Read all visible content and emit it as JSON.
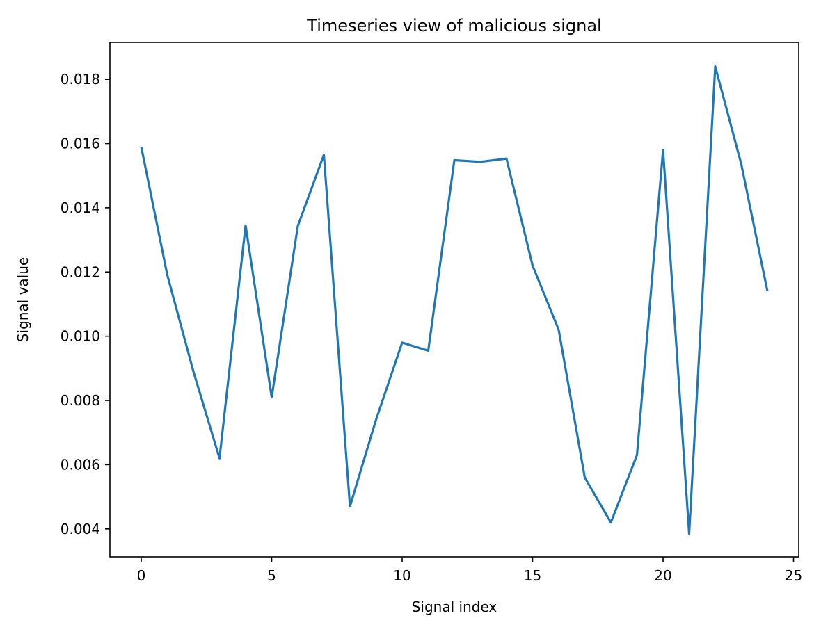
{
  "chart_data": {
    "type": "line",
    "title": "Timeseries view of malicious signal",
    "xlabel": "Signal index",
    "ylabel": "Signal value",
    "xlim": [
      -1.2,
      25.2
    ],
    "ylim": [
      0.00313,
      0.01915
    ],
    "xticks": [
      0,
      5,
      10,
      15,
      20,
      25
    ],
    "xtick_labels": [
      "0",
      "5",
      "10",
      "15",
      "20",
      "25"
    ],
    "yticks": [
      0.004,
      0.006,
      0.008,
      0.01,
      0.012,
      0.014,
      0.016,
      0.018
    ],
    "ytick_labels": [
      "0.004",
      "0.006",
      "0.008",
      "0.010",
      "0.012",
      "0.014",
      "0.016",
      "0.018"
    ],
    "grid": false,
    "series": [
      {
        "color": "#1f77b4",
        "x": [
          0,
          1,
          2,
          3,
          4,
          5,
          6,
          7,
          8,
          9,
          10,
          11,
          12,
          13,
          14,
          15,
          16,
          17,
          18,
          19,
          20,
          21,
          22,
          23,
          24
        ],
        "values": [
          0.0159,
          0.0119,
          0.0089,
          0.0062,
          0.01345,
          0.0081,
          0.01343,
          0.01565,
          0.0047,
          0.0074,
          0.0098,
          0.00955,
          0.01548,
          0.01543,
          0.01553,
          0.0122,
          0.0102,
          0.0056,
          0.0042,
          0.0063,
          0.0158,
          0.00385,
          0.0184,
          0.01535,
          0.0114
        ]
      }
    ]
  }
}
